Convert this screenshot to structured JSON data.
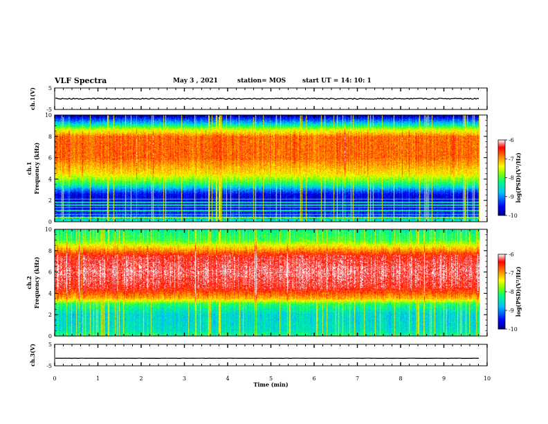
{
  "header": {
    "title": "VLF Spectra",
    "date": "May 3  , 2021",
    "station": "station= MOS",
    "start": "start  UT =   14: 10: 1"
  },
  "chart_data": [
    {
      "type": "line",
      "name": "ch1-waveform",
      "ylabel": "ch.1(V)",
      "ylim": [
        -5,
        5
      ],
      "yticks": [
        "5",
        "-5"
      ],
      "xlim": [
        0,
        10
      ],
      "level": 0
    },
    {
      "type": "heatmap",
      "name": "ch1-spectrogram",
      "ylabel": "ch.1\nFrequency (kHz)",
      "ylim": [
        0,
        10
      ],
      "yticks": [
        "0",
        "2",
        "4",
        "6",
        "8",
        "10"
      ],
      "xlim": [
        0,
        9.83
      ],
      "profile_khz": [
        0,
        0.5,
        1.5,
        2.5,
        3,
        3.5,
        4.5,
        6,
        8,
        8.7,
        9.3,
        10
      ],
      "profile_log_psd": [
        -8.3,
        -9.3,
        -9.6,
        -9.6,
        -9,
        -8.2,
        -7.3,
        -6.8,
        -6.8,
        -7.6,
        -8.8,
        -9.8
      ],
      "colorbar": {
        "label": "log(PSD)(V²/Hz)",
        "range": [
          -10,
          -6
        ],
        "ticks": [
          "-6",
          "-7",
          "-8",
          "-9",
          "-10"
        ]
      }
    },
    {
      "type": "heatmap",
      "name": "ch2-spectrogram",
      "ylabel": "ch.2\nFrequency (kHz)",
      "ylim": [
        0,
        10
      ],
      "yticks": [
        "0",
        "2",
        "4",
        "6",
        "8",
        "10"
      ],
      "xlim": [
        0,
        9.83
      ],
      "profile_khz": [
        0,
        0.5,
        2,
        3,
        3.5,
        4.5,
        6,
        7.5,
        8.3,
        9,
        10
      ],
      "profile_log_psd": [
        -8.2,
        -8.5,
        -8.6,
        -8.1,
        -7.1,
        -6.4,
        -6.2,
        -6.4,
        -7.2,
        -8.0,
        -8.3
      ],
      "colorbar": {
        "label": "log(PSD)(V²/Hz)",
        "range": [
          -10,
          -6
        ],
        "ticks": [
          "-6",
          "-7",
          "-8",
          "-9",
          "-10"
        ]
      }
    },
    {
      "type": "line",
      "name": "ch3-waveform",
      "ylabel": "ch.3(V)",
      "ylim": [
        -5,
        5
      ],
      "yticks": [
        "5",
        "-5"
      ],
      "xlim": [
        0,
        10
      ],
      "level": -1.5
    }
  ],
  "xaxis": {
    "label": "Time  (min)",
    "ticks": [
      "0",
      "1",
      "2",
      "3",
      "4",
      "5",
      "6",
      "7",
      "8",
      "9",
      "10"
    ]
  },
  "colors": {
    "ink": "#000000",
    "colormap": [
      "#00007f",
      "#0000ff",
      "#00bfff",
      "#00ff7f",
      "#7fff00",
      "#ffff00",
      "#ff7f00",
      "#ff0000",
      "#ffffff"
    ]
  }
}
